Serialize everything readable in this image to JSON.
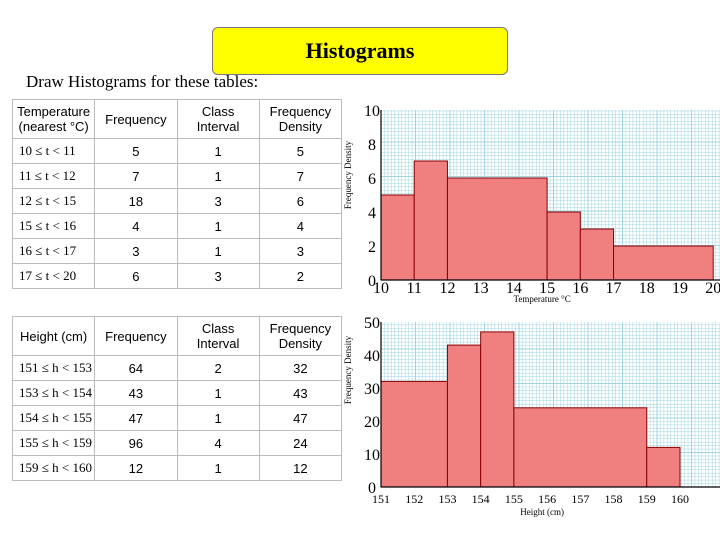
{
  "header": {
    "title": "Histograms",
    "instruction": "Draw Histograms for these tables:"
  },
  "table1": {
    "headers": [
      "Temperature (nearest °C)",
      "Frequency",
      "Class Interval",
      "Frequency Density"
    ],
    "rows": [
      [
        "10 ≤ t < 11",
        "5",
        "1",
        "5"
      ],
      [
        "11 ≤ t < 12",
        "7",
        "1",
        "7"
      ],
      [
        "12 ≤ t < 15",
        "18",
        "3",
        "6"
      ],
      [
        "15 ≤ t < 16",
        "4",
        "1",
        "4"
      ],
      [
        "16 ≤ t < 17",
        "3",
        "1",
        "3"
      ],
      [
        "17 ≤ t < 20",
        "6",
        "3",
        "2"
      ]
    ]
  },
  "table2": {
    "headers": [
      "Height (cm)",
      "Frequency",
      "Class Interval",
      "Frequency Density"
    ],
    "rows": [
      [
        "151 ≤ h < 153",
        "64",
        "2",
        "32"
      ],
      [
        "153 ≤ h < 154",
        "43",
        "1",
        "43"
      ],
      [
        "154 ≤ h < 155",
        "47",
        "1",
        "47"
      ],
      [
        "155 ≤ h < 159",
        "96",
        "4",
        "24"
      ],
      [
        "159 ≤ h < 160",
        "12",
        "1",
        "12"
      ]
    ]
  },
  "chart_data": [
    {
      "type": "bar",
      "xlabel": "Temperature °C",
      "ylabel": "Frequency Density",
      "xlim": [
        10,
        20
      ],
      "ylim": [
        0,
        10
      ],
      "xticks": [
        "10",
        "11",
        "12",
        "13",
        "14",
        "15",
        "16",
        "17",
        "18",
        "19",
        "20"
      ],
      "yticks": [
        "0",
        "2",
        "4",
        "6",
        "8",
        "10"
      ],
      "bins": [
        {
          "x0": 10,
          "x1": 11,
          "value": 5
        },
        {
          "x0": 11,
          "x1": 12,
          "value": 7
        },
        {
          "x0": 12,
          "x1": 15,
          "value": 6
        },
        {
          "x0": 15,
          "x1": 16,
          "value": 4
        },
        {
          "x0": 16,
          "x1": 17,
          "value": 3
        },
        {
          "x0": 17,
          "x1": 20,
          "value": 2
        }
      ],
      "bar_color": "#f08080",
      "grid": true,
      "grid_color": "#9fd4e0"
    },
    {
      "type": "bar",
      "xlabel": "Height (cm)",
      "ylabel": "Frequency Density",
      "xlim": [
        151,
        161
      ],
      "ylim": [
        0,
        50
      ],
      "xticks": [
        "151",
        "152",
        "153",
        "154",
        "155",
        "156",
        "157",
        "158",
        "159",
        "160"
      ],
      "yticks": [
        "0",
        "10",
        "20",
        "30",
        "40",
        "50"
      ],
      "bins": [
        {
          "x0": 151,
          "x1": 153,
          "value": 32
        },
        {
          "x0": 153,
          "x1": 154,
          "value": 43
        },
        {
          "x0": 154,
          "x1": 155,
          "value": 47
        },
        {
          "x0": 155,
          "x1": 159,
          "value": 24
        },
        {
          "x0": 159,
          "x1": 160,
          "value": 12
        }
      ],
      "bar_color": "#f08080",
      "grid": true,
      "grid_color": "#9fd4e0"
    }
  ]
}
